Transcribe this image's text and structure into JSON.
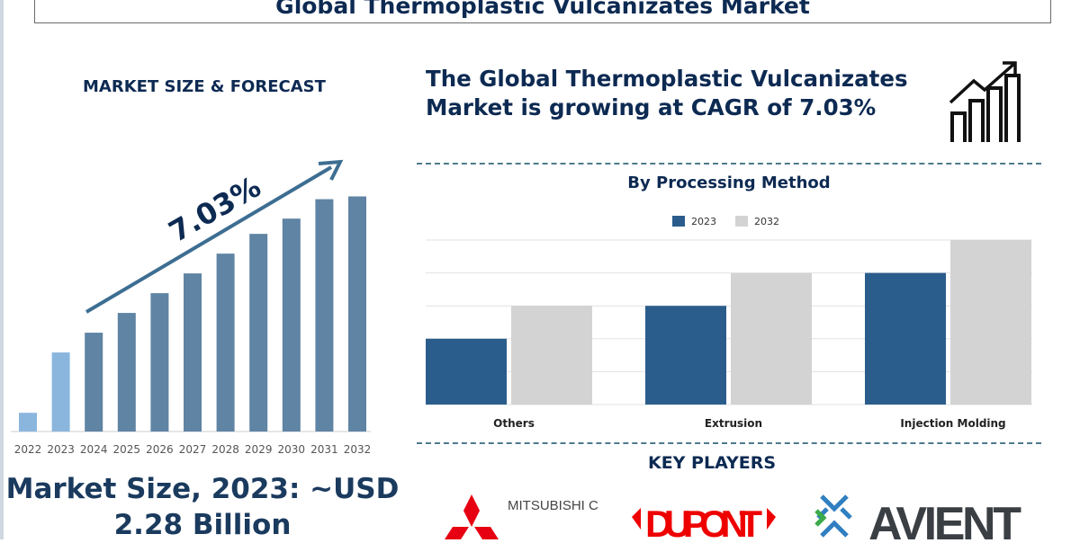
{
  "title": "Global Thermoplastic Vulcanizates Market",
  "left_heading": "MARKET SIZE & FORECAST",
  "headline": "The Global Thermoplastic Vulcanizates Market is growing at CAGR of 7.03%",
  "market_size": "Market Size, 2023: ~USD 2.28 Billion",
  "key_players_heading": "KEY PLAYERS",
  "key_players": [
    "MITSUBISHI CHEMICAL GROUP",
    "DUPONT",
    "AVIENT"
  ],
  "icons": [
    "growth-chart-icon",
    "trend-arrow-icon"
  ],
  "chart_data": [
    {
      "type": "bar",
      "categories": [
        "2022",
        "2023",
        "2024",
        "2025",
        "2026",
        "2027",
        "2028",
        "2029",
        "2030",
        "2031",
        "2032"
      ],
      "values": [
        0.54,
        2.28,
        2.85,
        3.42,
        3.99,
        4.56,
        5.13,
        5.7,
        6.14,
        6.7,
        6.78
      ],
      "annotation": "7.03%",
      "colors": {
        "historical": "#8ab6de",
        "forecast": "#5f84a4"
      },
      "grid": false
    },
    {
      "type": "bar",
      "title": "By Processing Method",
      "categories": [
        "Others",
        "Extrusion",
        "Injection Molding"
      ],
      "series": [
        {
          "name": "2023",
          "values": [
            2,
            3,
            4
          ],
          "color": "#2b5d8c"
        },
        {
          "name": "2032",
          "values": [
            3,
            4,
            5
          ],
          "color": "#d3d3d3"
        }
      ],
      "ylim": [
        0,
        5
      ],
      "grid": true,
      "legend": "top"
    }
  ]
}
